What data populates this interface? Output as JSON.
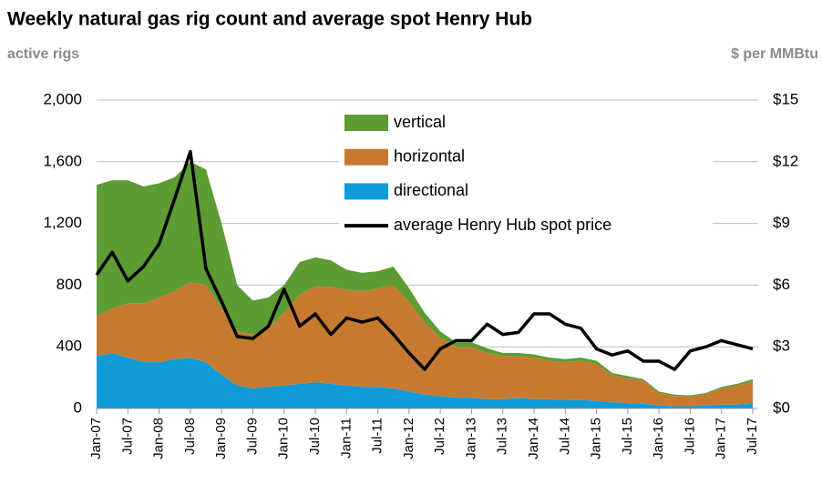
{
  "chart_data": {
    "type": "stacked-area-line",
    "title": "Weekly natural gas rig count and average spot Henry Hub",
    "y_label": "active rigs",
    "y2_label": "$ per MMBtu",
    "x": [
      "Jan-07",
      "Apr-07",
      "Jul-07",
      "Oct-07",
      "Jan-08",
      "Apr-08",
      "Jul-08",
      "Oct-08",
      "Jan-09",
      "Apr-09",
      "Jul-09",
      "Oct-09",
      "Jan-10",
      "Apr-10",
      "Jul-10",
      "Oct-10",
      "Jan-11",
      "Apr-11",
      "Jul-11",
      "Oct-11",
      "Jan-12",
      "Apr-12",
      "Jul-12",
      "Oct-12",
      "Jan-13",
      "Apr-13",
      "Jul-13",
      "Oct-13",
      "Jan-14",
      "Apr-14",
      "Jul-14",
      "Oct-14",
      "Jan-15",
      "Apr-15",
      "Jul-15",
      "Oct-15",
      "Jan-16",
      "Apr-16",
      "Jul-16",
      "Oct-16",
      "Jan-17",
      "Apr-17",
      "Jul-17"
    ],
    "xlim": [
      "Jan-07",
      "Jul-17"
    ],
    "xticks": [
      "Jan-07",
      "Jul-07",
      "Jan-08",
      "Jul-08",
      "Jan-09",
      "Jul-09",
      "Jan-10",
      "Jul-10",
      "Jan-11",
      "Jul-11",
      "Jan-12",
      "Jul-12",
      "Jan-13",
      "Jul-13",
      "Jan-14",
      "Jul-14",
      "Jan-15",
      "Jul-15",
      "Jan-16",
      "Jul-16",
      "Jan-17",
      "Jul-17"
    ],
    "ylim": [
      0,
      2000
    ],
    "yticks": [
      0,
      400,
      800,
      {
        "value": 1200,
        "label": "1,200"
      },
      {
        "value": 1600,
        "label": "1,600"
      },
      {
        "value": 2000,
        "label": "2,000"
      }
    ],
    "y2lim": [
      0,
      15
    ],
    "y2ticks": [
      {
        "value": 0,
        "label": "$0"
      },
      {
        "value": 3,
        "label": "$3"
      },
      {
        "value": 6,
        "label": "$6"
      },
      {
        "value": 9,
        "label": "$9"
      },
      {
        "value": 12,
        "label": "$12"
      },
      {
        "value": 15,
        "label": "$15"
      }
    ],
    "grid": true,
    "series": [
      {
        "name": "vertical",
        "color": "#5c9c33",
        "stack": true,
        "values": [
          850,
          830,
          800,
          760,
          740,
          740,
          780,
          750,
          550,
          300,
          220,
          200,
          180,
          210,
          190,
          170,
          130,
          120,
          110,
          120,
          90,
          60,
          40,
          30,
          30,
          30,
          20,
          20,
          20,
          20,
          20,
          20,
          20,
          15,
          15,
          10,
          10,
          8,
          7,
          8,
          10,
          10,
          15
        ]
      },
      {
        "name": "horizontal",
        "color": "#c67a30",
        "stack": true,
        "values": [
          260,
          290,
          350,
          380,
          420,
          440,
          490,
          500,
          430,
          350,
          350,
          380,
          470,
          580,
          620,
          630,
          620,
          620,
          640,
          670,
          580,
          470,
          380,
          330,
          330,
          300,
          280,
          270,
          270,
          250,
          245,
          255,
          240,
          175,
          160,
          150,
          80,
          67,
          63,
          72,
          105,
          125,
          145
        ]
      },
      {
        "name": "directional",
        "color": "#0e9bd8",
        "stack": true,
        "values": [
          340,
          360,
          330,
          300,
          300,
          320,
          330,
          300,
          220,
          150,
          130,
          140,
          150,
          160,
          170,
          160,
          150,
          140,
          140,
          130,
          110,
          90,
          80,
          70,
          70,
          60,
          60,
          70,
          60,
          60,
          55,
          55,
          50,
          40,
          35,
          30,
          20,
          15,
          15,
          20,
          25,
          25,
          30
        ]
      },
      {
        "name": "average Henry Hub spot price",
        "color": "#000000",
        "axis": "y2",
        "values": [
          6.5,
          7.6,
          6.2,
          6.9,
          8.0,
          10.2,
          12.5,
          6.8,
          5.2,
          3.5,
          3.4,
          4.0,
          5.8,
          4.0,
          4.6,
          3.6,
          4.4,
          4.2,
          4.4,
          3.6,
          2.7,
          1.9,
          2.9,
          3.3,
          3.3,
          4.1,
          3.6,
          3.7,
          4.6,
          4.6,
          4.1,
          3.9,
          2.9,
          2.6,
          2.8,
          2.3,
          2.3,
          1.9,
          2.8,
          3.0,
          3.3,
          3.1,
          2.9
        ]
      }
    ]
  }
}
